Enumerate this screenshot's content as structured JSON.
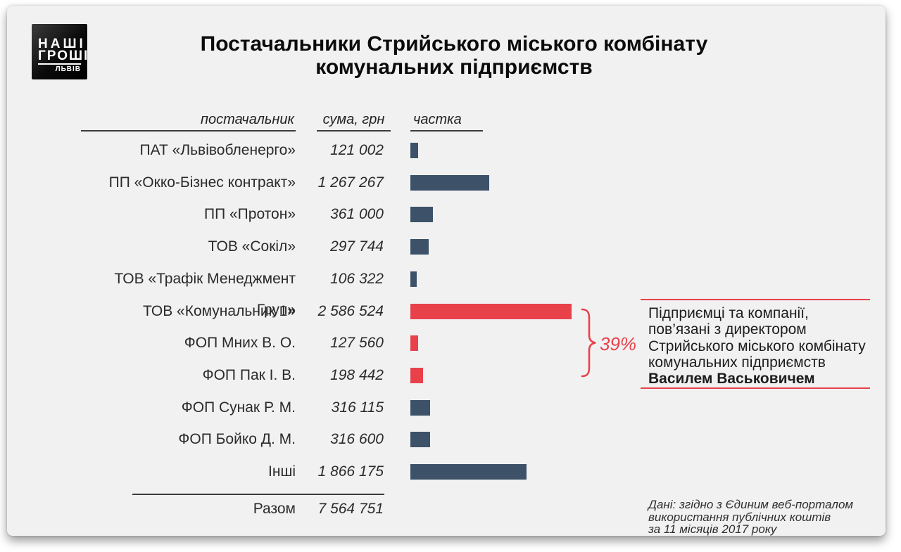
{
  "logo": {
    "line1": "НАШІ",
    "line2": "ГРОШІ",
    "city": "ЛЬВІВ"
  },
  "title": {
    "line1": "Постачальники Стрийського міського комбінату",
    "line2": "комунальних підприємств"
  },
  "columns": {
    "supplier": "постачальник",
    "amount": "сума, грн",
    "share": "частка"
  },
  "chart_data": {
    "type": "bar",
    "orientation": "horizontal",
    "title": "Постачальники Стрийського міського комбінату комунальних підприємств",
    "unit": "грн",
    "categories": [
      "ПАТ «Львівобленерго»",
      "ПП «Окко-Бізнес контракт»",
      "ПП «Протон»",
      "ТОВ «Сокіл»",
      "ТОВ «Трафік Менеджмент Груп»",
      "ТОВ «Комунальник 1»",
      "ФОП Мних В. О.",
      "ФОП Пак І. В.",
      "ФОП Сунак Р. М.",
      "ФОП Бойко Д. М.",
      "Інші"
    ],
    "values": [
      121002,
      1267267,
      361000,
      297744,
      106322,
      2586524,
      127560,
      198442,
      316115,
      316600,
      1866175
    ],
    "display_values": [
      "121 002",
      "1 267 267",
      "361 000",
      "297 744",
      "106 322",
      "2 586 524",
      "127 560",
      "198 442",
      "316 115",
      "316 600",
      "1 866 175"
    ],
    "highlighted": [
      false,
      false,
      false,
      false,
      false,
      true,
      true,
      true,
      false,
      false,
      false
    ],
    "total": {
      "label": "Разом",
      "value": 7564751,
      "display_value": "7 564 751"
    },
    "bar_color": "#3D5268",
    "highlight_color": "#E8414A",
    "legend_position": "none",
    "grid": false
  },
  "annotation": {
    "percent": "39%",
    "lines": [
      "Підприємці та компанії,",
      "пов’язані з директором",
      "Стрийського міського комбінату",
      "комунальних підприємств"
    ],
    "bold_line": "Василем Васьковичем"
  },
  "source": {
    "lines": [
      "Дані: згідно з Єдиним веб-порталом",
      "використання публічних коштів",
      "за 11 місяців 2017 року"
    ]
  },
  "colors": {
    "card_bg": "#F1F1F2",
    "bar": "#3D5268",
    "highlight": "#E8414A",
    "text": "#2b2b2b"
  }
}
